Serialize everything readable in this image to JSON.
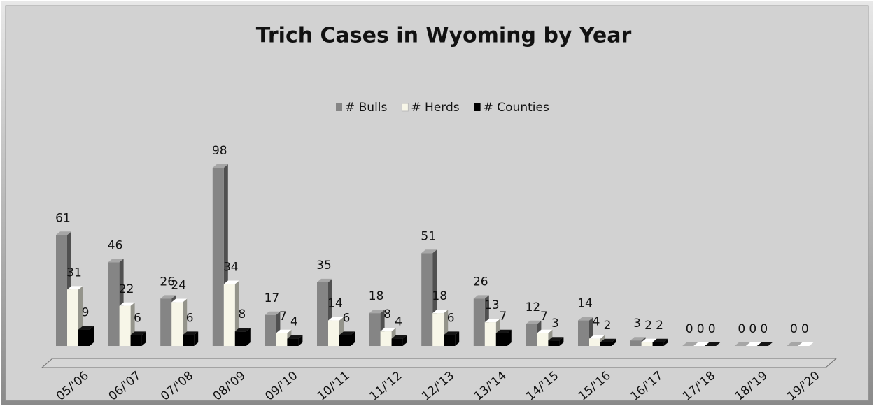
{
  "chart_data": {
    "type": "bar3d",
    "title": "Trich Cases in Wyoming by Year",
    "categories": [
      "05/'06",
      "06/'07",
      "07/'08",
      "08/'09",
      "09/'10",
      "10/'11",
      "11/'12",
      "12/'13",
      "13/'14",
      "14/'15",
      "15/'16",
      "16/'17",
      "17/'18",
      "18/'19",
      "19/'20"
    ],
    "series": [
      {
        "name": "# Bulls",
        "color": "#858585",
        "values": [
          61,
          46,
          26,
          98,
          17,
          35,
          18,
          51,
          26,
          12,
          14,
          3,
          0,
          0,
          0
        ]
      },
      {
        "name": "# Herds",
        "color": "#f7f6e8",
        "values": [
          31,
          22,
          24,
          34,
          7,
          14,
          8,
          18,
          13,
          7,
          4,
          2,
          0,
          0,
          0
        ]
      },
      {
        "name": "# Counties",
        "color": "#000000",
        "values": [
          9,
          6,
          6,
          8,
          4,
          6,
          4,
          6,
          7,
          3,
          2,
          2,
          0,
          0,
          null
        ]
      }
    ],
    "legend": "top"
  }
}
